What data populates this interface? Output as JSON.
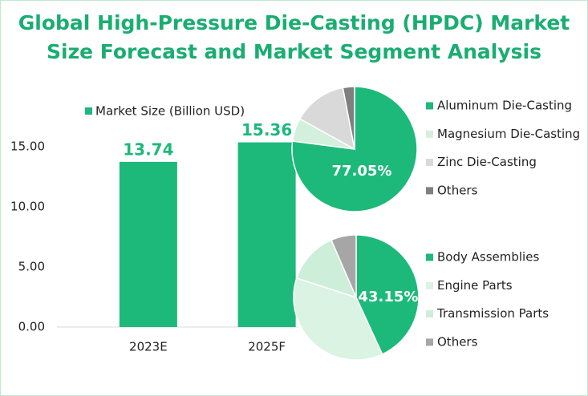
{
  "title": "Global High-Pressure Die-Casting (HPDC) Market Size Forecast and Market Segment Analysis",
  "chart_data": [
    {
      "type": "bar",
      "categories": [
        "2023E",
        "2025F"
      ],
      "series": [
        {
          "name": "Market Size (Billion USD)",
          "color": "#1db97a",
          "values": [
            13.74,
            15.36
          ]
        }
      ],
      "ylim": [
        0,
        20
      ],
      "yticks": [
        {
          "value": 0,
          "label": "0.00"
        },
        {
          "value": 5,
          "label": "5.00"
        },
        {
          "value": 10,
          "label": "10.00"
        },
        {
          "value": 15,
          "label": "15.00"
        }
      ],
      "legend": "top"
    },
    {
      "type": "pie",
      "categories": [
        "Aluminum Die-Casting",
        "Magnesium Die-Casting",
        "Zinc Die-Casting",
        "Others"
      ],
      "values": [
        77.05,
        6,
        13.95,
        3
      ],
      "value_labels": [
        "77.05%",
        null,
        null,
        null
      ],
      "colors": [
        "#1db97a",
        "#d2f0dc",
        "#d9d9d9",
        "#7f7f7f"
      ],
      "legend": "right"
    },
    {
      "type": "pie",
      "categories": [
        "Body Assemblies",
        "Engine Parts",
        "Transmission Parts",
        "Others"
      ],
      "values": [
        43.15,
        36.85,
        13.5,
        6.5
      ],
      "value_labels": [
        "43.15%",
        null,
        null,
        null
      ],
      "colors": [
        "#1db97a",
        "#daf3e2",
        "#cdeed8",
        "#a6a6a6"
      ],
      "legend": "right"
    }
  ]
}
